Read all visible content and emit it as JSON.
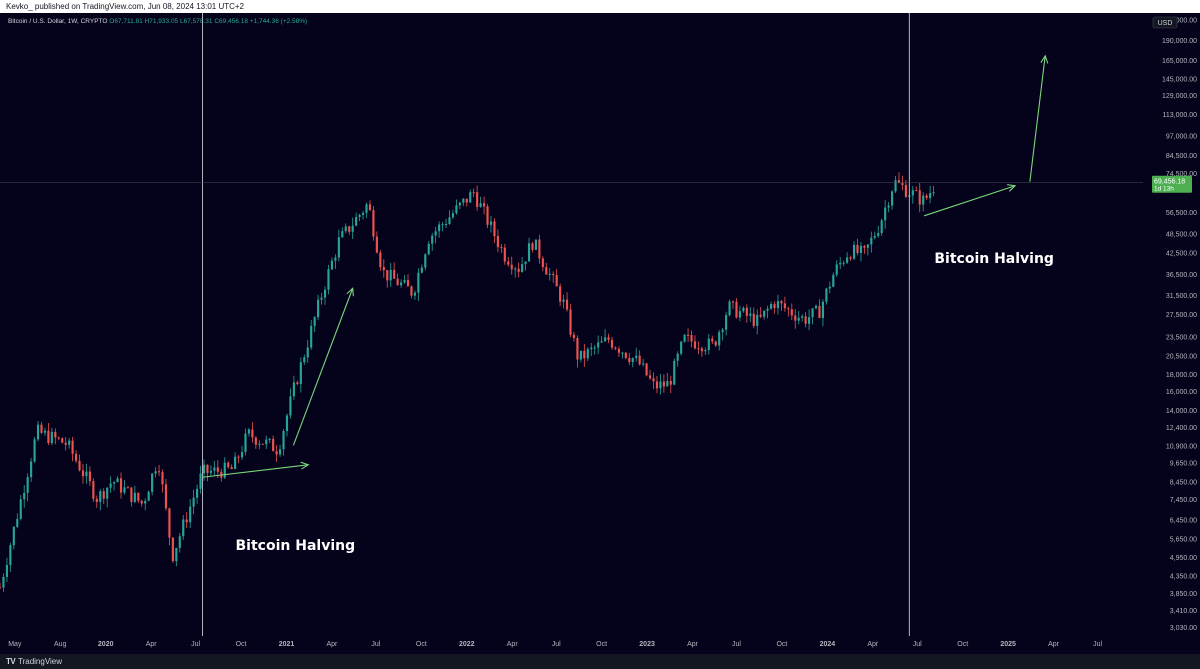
{
  "header": {
    "publisher_line": "Kevko_ published on TradingView.com, Jun 08, 2024 13:01 UTC+2"
  },
  "footer": {
    "logo_text": "TV",
    "brand": "TradingView"
  },
  "colors": {
    "background": "#05031c",
    "up": "#26a69a",
    "down": "#ef5350",
    "arrow": "#7bd67b",
    "halving_line": "#b2b5be",
    "price_badge": "#4caf50",
    "axis_text": "#b2b5be"
  },
  "chart_data": {
    "type": "candlestick",
    "symbol_line": "Bitcoin / U.S. Dollar, 1W, CRYPTO",
    "ohlc_readout": {
      "open": "O67,711.81",
      "high": "H71,933.05",
      "low": "L67,578.31",
      "close": "C69,456.18",
      "change": "+1,744.36 (+2.58%)"
    },
    "currency_badge": "USD",
    "price_scale": "log",
    "x_axis_labels": [
      "May",
      "Aug",
      "2020",
      "Apr",
      "Jul",
      "Oct",
      "2021",
      "Apr",
      "Jul",
      "Oct",
      "2022",
      "Apr",
      "Jul",
      "Oct",
      "2023",
      "Apr",
      "Jul",
      "Oct",
      "2024",
      "Apr",
      "Jul",
      "Oct",
      "2025",
      "Apr",
      "Jul"
    ],
    "y_axis_labels": [
      "220,000.00",
      "190,000.00",
      "165,000.00",
      "145,000.00",
      "129,000.00",
      "113,000.00",
      "97,000.00",
      "84,500.00",
      "74,500.00",
      "56,500.00",
      "48,500.00",
      "42,500.00",
      "36,500.00",
      "31,500.00",
      "27,500.00",
      "23,500.00",
      "20,500.00",
      "18,000.00",
      "16,000.00",
      "14,000.00",
      "12,400.00",
      "10,900.00",
      "9,650.00",
      "8,450.00",
      "7,450.00",
      "6,450.00",
      "5,650.00",
      "4,950.00",
      "4,350.00",
      "3,850.00",
      "3,410.00",
      "3,030.00"
    ],
    "last_price": "69,456.18",
    "countdown": "1d 13h",
    "halving_lines": [
      {
        "date": "2020-05",
        "label": "Bitcoin Halving"
      },
      {
        "date": "2024-04",
        "label": "Bitcoin Halving"
      }
    ],
    "price_anchors": [
      {
        "date": "2019-04",
        "price": 4000
      },
      {
        "date": "2019-06",
        "price": 12000
      },
      {
        "date": "2019-08",
        "price": 11000
      },
      {
        "date": "2019-10",
        "price": 7500
      },
      {
        "date": "2019-11",
        "price": 8500
      },
      {
        "date": "2020-01",
        "price": 7200
      },
      {
        "date": "2020-02",
        "price": 10000
      },
      {
        "date": "2020-03",
        "price": 5000
      },
      {
        "date": "2020-05",
        "price": 9000
      },
      {
        "date": "2020-07",
        "price": 9200
      },
      {
        "date": "2020-08",
        "price": 11800
      },
      {
        "date": "2020-10",
        "price": 10600
      },
      {
        "date": "2020-11",
        "price": 16000
      },
      {
        "date": "2021-01",
        "price": 33000
      },
      {
        "date": "2021-02",
        "price": 46000
      },
      {
        "date": "2021-04",
        "price": 60000
      },
      {
        "date": "2021-05",
        "price": 37000
      },
      {
        "date": "2021-07",
        "price": 32000
      },
      {
        "date": "2021-08",
        "price": 47000
      },
      {
        "date": "2021-11",
        "price": 65000
      },
      {
        "date": "2022-01",
        "price": 42000
      },
      {
        "date": "2022-02",
        "price": 38000
      },
      {
        "date": "2022-03",
        "price": 46000
      },
      {
        "date": "2022-05",
        "price": 30000
      },
      {
        "date": "2022-06",
        "price": 20000
      },
      {
        "date": "2022-08",
        "price": 23000
      },
      {
        "date": "2022-10",
        "price": 19500
      },
      {
        "date": "2022-11",
        "price": 16500
      },
      {
        "date": "2022-12",
        "price": 16800
      },
      {
        "date": "2023-01",
        "price": 23000
      },
      {
        "date": "2023-03",
        "price": 22000
      },
      {
        "date": "2023-04",
        "price": 29000
      },
      {
        "date": "2023-06",
        "price": 26000
      },
      {
        "date": "2023-07",
        "price": 30000
      },
      {
        "date": "2023-09",
        "price": 26500
      },
      {
        "date": "2023-10",
        "price": 28000
      },
      {
        "date": "2023-11",
        "price": 37000
      },
      {
        "date": "2023-12",
        "price": 43000
      },
      {
        "date": "2024-01",
        "price": 42000
      },
      {
        "date": "2024-02",
        "price": 52000
      },
      {
        "date": "2024-03",
        "price": 70000
      },
      {
        "date": "2024-05",
        "price": 61000
      },
      {
        "date": "2024-06",
        "price": 69456
      }
    ],
    "projection_arrows": [
      {
        "from": {
          "date": "2020-05",
          "price": 8700
        },
        "to": {
          "date": "2020-12",
          "price": 9500
        }
      },
      {
        "from": {
          "date": "2020-11",
          "price": 10900
        },
        "to": {
          "date": "2021-03",
          "price": 33000
        }
      },
      {
        "from": {
          "date": "2024-05",
          "price": 55000
        },
        "to": {
          "date": "2024-11",
          "price": 68000
        }
      },
      {
        "from": {
          "date": "2024-12",
          "price": 70000
        },
        "to": {
          "date": "2025-01",
          "price": 170000
        }
      }
    ]
  }
}
